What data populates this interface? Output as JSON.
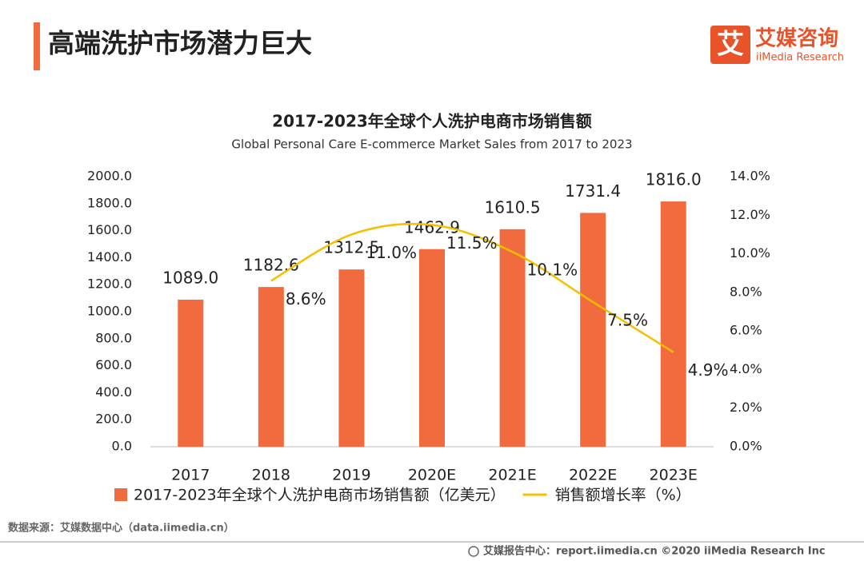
{
  "header": {
    "title": "高端洗护市场潜力巨大"
  },
  "logo": {
    "mark": "艾",
    "name": "艾媒咨询",
    "name_en": "iiMedia Research"
  },
  "chart_data": {
    "type": "bar",
    "title": "2017-2023年全球个人洗护电商市场销售额",
    "subtitle": "Global Personal Care E-commerce Market Sales from 2017 to 2023",
    "categories": [
      "2017",
      "2018",
      "2019",
      "2020E",
      "2021E",
      "2022E",
      "2023E"
    ],
    "series": [
      {
        "name": "2017-2023年全球个人洗护电商市场销售额（亿美元）",
        "type": "bar",
        "color": "#f26b3f",
        "values": [
          1089.0,
          1182.6,
          1312.5,
          1462.9,
          1610.5,
          1731.4,
          1816.0
        ],
        "value_labels": [
          "1089.0",
          "1182.6",
          "1312.5",
          "1462.9",
          "1610.5",
          "1731.4",
          "1816.0"
        ]
      },
      {
        "name": "销售额增长率（%）",
        "type": "line",
        "axis": "y2",
        "color": "#f5c000",
        "values": [
          null,
          8.6,
          11.0,
          11.5,
          10.1,
          7.5,
          4.9
        ],
        "value_labels": [
          null,
          "8.6%",
          "11.0%",
          "11.5%",
          "10.1%",
          "7.5%",
          "4.9%"
        ]
      }
    ],
    "ylim": [
      0,
      2000
    ],
    "yticks": [
      {
        "value": 0,
        "label": "0.0"
      },
      {
        "value": 200,
        "label": "200.0"
      },
      {
        "value": 400,
        "label": "400.0"
      },
      {
        "value": 600,
        "label": "600.0"
      },
      {
        "value": 800,
        "label": "800.0"
      },
      {
        "value": 1000,
        "label": "1000.0"
      },
      {
        "value": 1200,
        "label": "1200.0"
      },
      {
        "value": 1400,
        "label": "1400.0"
      },
      {
        "value": 1600,
        "label": "1600.0"
      },
      {
        "value": 1800,
        "label": "1800.0"
      },
      {
        "value": 2000,
        "label": "2000.0"
      }
    ],
    "y2lim": [
      0,
      14
    ],
    "y2ticks": [
      {
        "value": 0,
        "label": "0.0%"
      },
      {
        "value": 2,
        "label": "2.0%"
      },
      {
        "value": 4,
        "label": "4.0%"
      },
      {
        "value": 6,
        "label": "6.0%"
      },
      {
        "value": 8,
        "label": "8.0%"
      },
      {
        "value": 10,
        "label": "10.0%"
      },
      {
        "value": 12,
        "label": "12.0%"
      },
      {
        "value": 14,
        "label": "14.0%"
      }
    ],
    "grid": false,
    "legend": "bottom"
  },
  "source": "数据来源：艾媒数据中心（data.iimedia.cn）",
  "footer": "艾媒报告中心：report.iimedia.cn   ©2020  iiMedia Research  Inc"
}
